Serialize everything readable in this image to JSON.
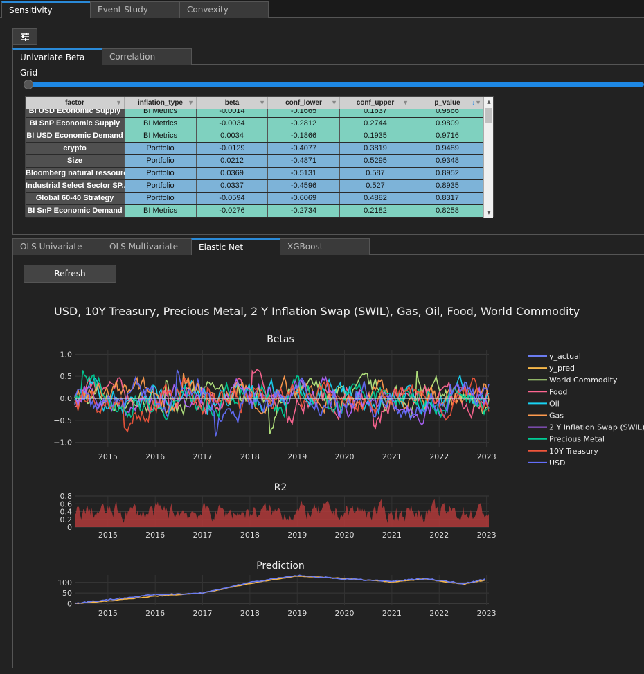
{
  "top_tabs": [
    "Sensitivity",
    "Event Study",
    "Convexity"
  ],
  "sub_tabs": [
    "Univariate Beta Grid",
    "Correlation"
  ],
  "grid": {
    "columns": [
      "factor",
      "inflation_type",
      "beta",
      "conf_lower",
      "conf_upper",
      "p_value"
    ],
    "rows": [
      {
        "factor": "BI USD Economic Supply",
        "inflation_type": "BI Metrics",
        "beta": "-0.0014",
        "conf_lower": "-0.1665",
        "conf_upper": "0.1637",
        "p_value": "0.9866",
        "kind": "metrics"
      },
      {
        "factor": "BI SnP Economic Supply",
        "inflation_type": "BI Metrics",
        "beta": "-0.0034",
        "conf_lower": "-0.2812",
        "conf_upper": "0.2744",
        "p_value": "0.9809",
        "kind": "metrics"
      },
      {
        "factor": "BI USD Economic Demand",
        "inflation_type": "BI Metrics",
        "beta": "0.0034",
        "conf_lower": "-0.1866",
        "conf_upper": "0.1935",
        "p_value": "0.9716",
        "kind": "metrics"
      },
      {
        "factor": "crypto",
        "inflation_type": "Portfolio",
        "beta": "-0.0129",
        "conf_lower": "-0.4077",
        "conf_upper": "0.3819",
        "p_value": "0.9489",
        "kind": "portfolio"
      },
      {
        "factor": "Size",
        "inflation_type": "Portfolio",
        "beta": "0.0212",
        "conf_lower": "-0.4871",
        "conf_upper": "0.5295",
        "p_value": "0.9348",
        "kind": "portfolio"
      },
      {
        "factor": "Bloomberg natural ressourc...",
        "inflation_type": "Portfolio",
        "beta": "0.0369",
        "conf_lower": "-0.5131",
        "conf_upper": "0.587",
        "p_value": "0.8952",
        "kind": "portfolio"
      },
      {
        "factor": "Industrial Select Sector SP...",
        "inflation_type": "Portfolio",
        "beta": "0.0337",
        "conf_lower": "-0.4596",
        "conf_upper": "0.527",
        "p_value": "0.8935",
        "kind": "portfolio"
      },
      {
        "factor": "Global 60-40 Strategy",
        "inflation_type": "Portfolio",
        "beta": "-0.0594",
        "conf_lower": "-0.6069",
        "conf_upper": "0.4882",
        "p_value": "0.8317",
        "kind": "portfolio"
      },
      {
        "factor": "BI SnP Economic Demand",
        "inflation_type": "BI Metrics",
        "beta": "-0.0276",
        "conf_lower": "-0.2734",
        "conf_upper": "0.2182",
        "p_value": "0.8258",
        "kind": "metrics"
      }
    ],
    "colors": {
      "metrics": "#7fd1bf",
      "portfolio": "#7db3d8"
    }
  },
  "model_tabs": [
    "OLS Univariate",
    "OLS Multivariate",
    "Elastic Net",
    "XGBoost"
  ],
  "refresh_label": "Refresh",
  "figure_title": "USD, 10Y Treasury, Precious Metal, 2 Y Inflation Swap (SWIL), Gas, Oil, Food, World Commodity",
  "chart_data": [
    {
      "type": "line",
      "title": "Betas",
      "x_ticks": [
        "2015",
        "2016",
        "2017",
        "2018",
        "2019",
        "2020",
        "2021",
        "2022",
        "2023"
      ],
      "y_ticks": [
        "1.0",
        "0.5",
        "0.0",
        "−0.5",
        "−1.0"
      ],
      "ylim": [
        -1.1,
        1.1
      ],
      "legend_position": "right",
      "series": [
        {
          "name": "y_actual",
          "color": "#6b7cf0"
        },
        {
          "name": "y_pred",
          "color": "#f7b84a"
        },
        {
          "name": "World Commodity",
          "color": "#b6e880"
        },
        {
          "name": "Food",
          "color": "#ff6692"
        },
        {
          "name": "Oil",
          "color": "#19d3f3"
        },
        {
          "name": "Gas",
          "color": "#ff9b4e"
        },
        {
          "name": "2 Y Inflation Swap (SWIL)",
          "color": "#ab63fa"
        },
        {
          "name": "Precious Metal",
          "color": "#00cc96"
        },
        {
          "name": "10Y Treasury",
          "color": "#ef553b"
        },
        {
          "name": "USD",
          "color": "#636efa"
        }
      ]
    },
    {
      "type": "area",
      "title": "R2",
      "x_ticks": [
        "2015",
        "2016",
        "2017",
        "2018",
        "2019",
        "2020",
        "2021",
        "2022",
        "2023"
      ],
      "y_ticks": [
        "0.8",
        "0.6",
        "0.4",
        "0.2",
        "0"
      ],
      "ylim": [
        0,
        0.8
      ],
      "color": "#b03a3a"
    },
    {
      "type": "line",
      "title": "Prediction",
      "x_ticks": [
        "2015",
        "2016",
        "2017",
        "2018",
        "2019",
        "2020",
        "2021",
        "2022",
        "2023"
      ],
      "y_ticks": [
        "100",
        "50",
        "0"
      ],
      "ylim": [
        0,
        140
      ],
      "series": [
        {
          "name": "y_actual",
          "color": "#6b7cf0",
          "x": [
            2014.3,
            2015.0,
            2016.0,
            2017.0,
            2018.0,
            2019.0,
            2020.0,
            2021.0,
            2021.7,
            2022.5,
            2023.0
          ],
          "y": [
            2,
            18,
            42,
            50,
            100,
            132,
            116,
            105,
            118,
            95,
            115
          ]
        },
        {
          "name": "y_pred",
          "color": "#f7b84a",
          "x": [
            2014.3,
            2015.0,
            2016.0,
            2017.0,
            2018.0,
            2019.0,
            2020.0,
            2021.0,
            2021.7,
            2022.5,
            2023.0
          ],
          "y": [
            0,
            12,
            35,
            50,
            95,
            130,
            118,
            102,
            116,
            92,
            112
          ]
        }
      ]
    }
  ]
}
